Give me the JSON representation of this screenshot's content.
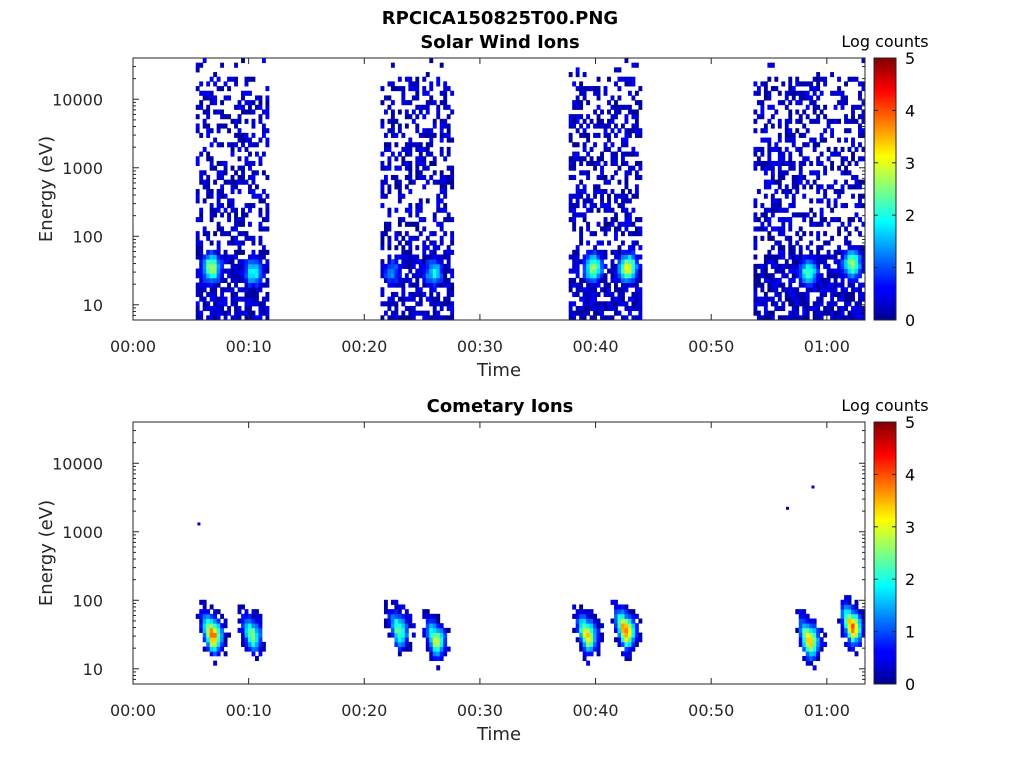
{
  "figure": {
    "title": "RPCICA150825T00.PNG"
  },
  "colormap": "jet",
  "chart_data": [
    {
      "type": "heatmap",
      "title": "Solar Wind Ions",
      "xlabel": "Time",
      "ylabel": "Energy (eV)",
      "x_ticks": [
        "00:00",
        "00:10",
        "00:20",
        "00:30",
        "00:40",
        "00:50",
        "01:00"
      ],
      "x_tick_minutes": [
        0,
        10,
        20,
        30,
        40,
        50,
        60
      ],
      "xlim_minutes": [
        0,
        63.3
      ],
      "y_scale": "log",
      "y_ticks": [
        "10",
        "100",
        "1000",
        "10000"
      ],
      "y_tick_values": [
        10,
        100,
        1000,
        10000
      ],
      "ylim": [
        6,
        40000
      ],
      "colorbar": {
        "label": "Log counts",
        "ticks": [
          "0",
          "1",
          "2",
          "3",
          "4",
          "5"
        ],
        "range": [
          0,
          5
        ]
      },
      "intervals_minutes": [
        [
          5.4,
          11.8
        ],
        [
          21.5,
          27.8
        ],
        [
          37.6,
          44.0
        ],
        [
          53.7,
          63.3
        ]
      ],
      "features": [
        {
          "t": 6.8,
          "energy": 35,
          "log_counts": 2.8
        },
        {
          "t": 10.4,
          "energy": 30,
          "log_counts": 2.0
        },
        {
          "t": 22.4,
          "energy": 30,
          "log_counts": 1.3
        },
        {
          "t": 26.0,
          "energy": 30,
          "log_counts": 1.8
        },
        {
          "t": 39.8,
          "energy": 35,
          "log_counts": 2.6
        },
        {
          "t": 42.8,
          "energy": 35,
          "log_counts": 3.0
        },
        {
          "t": 58.4,
          "energy": 30,
          "log_counts": 2.3
        },
        {
          "t": 62.2,
          "energy": 40,
          "log_counts": 2.6
        }
      ]
    },
    {
      "type": "heatmap",
      "title": "Cometary Ions",
      "xlabel": "Time",
      "ylabel": "Energy (eV)",
      "x_ticks": [
        "00:00",
        "00:10",
        "00:20",
        "00:30",
        "00:40",
        "00:50",
        "01:00"
      ],
      "x_tick_minutes": [
        0,
        10,
        20,
        30,
        40,
        50,
        60
      ],
      "xlim_minutes": [
        0,
        63.3
      ],
      "y_scale": "log",
      "y_ticks": [
        "10",
        "100",
        "1000",
        "10000"
      ],
      "y_tick_values": [
        10,
        100,
        1000,
        10000
      ],
      "ylim": [
        6,
        40000
      ],
      "colorbar": {
        "label": "Log counts",
        "ticks": [
          "0",
          "1",
          "2",
          "3",
          "4",
          "5"
        ],
        "range": [
          0,
          5
        ]
      },
      "features": [
        {
          "t": 6.9,
          "energy": 30,
          "log_counts": 3.9
        },
        {
          "t": 10.3,
          "energy": 30,
          "log_counts": 2.5
        },
        {
          "t": 23.0,
          "energy": 35,
          "log_counts": 2.5
        },
        {
          "t": 26.2,
          "energy": 25,
          "log_counts": 2.8
        },
        {
          "t": 39.3,
          "energy": 30,
          "log_counts": 3.3
        },
        {
          "t": 42.6,
          "energy": 35,
          "log_counts": 3.9
        },
        {
          "t": 58.5,
          "energy": 25,
          "log_counts": 3.5
        },
        {
          "t": 62.2,
          "energy": 40,
          "log_counts": 3.9
        }
      ],
      "outliers": [
        {
          "t": 5.7,
          "energy": 1300
        },
        {
          "t": 56.6,
          "energy": 2200
        },
        {
          "t": 58.8,
          "energy": 4500
        }
      ]
    }
  ]
}
